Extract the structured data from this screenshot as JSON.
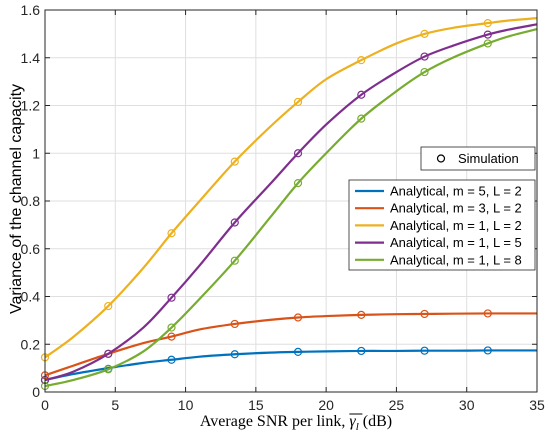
{
  "chart_data": {
    "type": "line",
    "xlabel": "Average SNR per link, ",
    "xlabel_symbol": "γ",
    "xlabel_subscript": "l",
    "xlabel_unit": " (dB)",
    "ylabel": "Variance of the channel capacity",
    "xlim": [
      0,
      35
    ],
    "ylim": [
      0,
      1.6
    ],
    "xticks": [
      0,
      5,
      10,
      15,
      20,
      25,
      30,
      35
    ],
    "yticks": [
      0,
      0.2,
      0.4,
      0.6,
      0.8,
      1,
      1.2,
      1.4,
      1.6
    ],
    "ytick_labels": [
      "0",
      "0.2",
      "0.4",
      "0.6",
      "0.8",
      "1",
      "1.2",
      "1.4",
      "1.6"
    ],
    "grid": true,
    "legend_simulation": {
      "label": "Simulation",
      "placement": "upper-right"
    },
    "legend_analytical": {
      "placement": "right"
    },
    "x_markers": [
      0,
      4.5,
      9,
      13.5,
      18,
      22.5,
      27,
      31.5
    ],
    "series": [
      {
        "name": "Analytical, m = 5, L = 2",
        "color": "#0072BD",
        "x": [
          0,
          2,
          4.5,
          7,
          9,
          11,
          13.5,
          16,
          18,
          20,
          22.5,
          25,
          27,
          29,
          31.5,
          33,
          35
        ],
        "y": [
          0.05,
          0.075,
          0.1,
          0.122,
          0.135,
          0.148,
          0.158,
          0.165,
          0.168,
          0.17,
          0.172,
          0.172,
          0.173,
          0.173,
          0.174,
          0.174,
          0.174
        ],
        "markers": [
          0.05,
          0.097,
          0.135,
          0.158,
          0.168,
          0.172,
          0.173,
          0.174
        ]
      },
      {
        "name": "Analytical, m = 3, L = 2",
        "color": "#D95319",
        "x": [
          0,
          2,
          4.5,
          7,
          9,
          11,
          13.5,
          16,
          18,
          20,
          22.5,
          25,
          27,
          29,
          31.5,
          33,
          35
        ],
        "y": [
          0.07,
          0.11,
          0.16,
          0.205,
          0.232,
          0.262,
          0.285,
          0.302,
          0.312,
          0.318,
          0.323,
          0.326,
          0.327,
          0.328,
          0.329,
          0.329,
          0.329
        ],
        "markers": [
          0.07,
          0.16,
          0.232,
          0.285,
          0.312,
          0.323,
          0.327,
          0.329
        ]
      },
      {
        "name": "Analytical, m = 1, L = 2",
        "color": "#EDB120",
        "x": [
          0,
          2,
          4.5,
          7,
          9,
          11,
          13.5,
          16,
          18,
          20,
          22.5,
          25,
          27,
          29,
          31.5,
          33,
          35
        ],
        "y": [
          0.145,
          0.23,
          0.36,
          0.52,
          0.665,
          0.8,
          0.965,
          1.11,
          1.215,
          1.31,
          1.39,
          1.46,
          1.5,
          1.525,
          1.545,
          1.556,
          1.566
        ],
        "markers": [
          0.145,
          0.36,
          0.665,
          0.965,
          1.215,
          1.39,
          1.5,
          1.545
        ]
      },
      {
        "name": "Analytical, m = 1, L = 5",
        "color": "#7E2F8E",
        "x": [
          0,
          2,
          4.5,
          7,
          9,
          11,
          13.5,
          16,
          18,
          20,
          22.5,
          25,
          27,
          29,
          31.5,
          33,
          35
        ],
        "y": [
          0.05,
          0.085,
          0.16,
          0.27,
          0.395,
          0.53,
          0.71,
          0.87,
          1.0,
          1.12,
          1.245,
          1.34,
          1.405,
          1.45,
          1.497,
          1.518,
          1.54
        ],
        "markers": [
          0.05,
          0.16,
          0.395,
          0.71,
          1.0,
          1.245,
          1.405,
          1.497
        ]
      },
      {
        "name": "Analytical, m = 1, L = 8",
        "color": "#77AC30",
        "x": [
          0,
          2,
          4.5,
          7,
          9,
          11,
          13.5,
          16,
          18,
          20,
          22.5,
          25,
          27,
          29,
          31.5,
          33,
          35
        ],
        "y": [
          0.025,
          0.05,
          0.095,
          0.17,
          0.27,
          0.39,
          0.55,
          0.73,
          0.875,
          1.0,
          1.145,
          1.26,
          1.34,
          1.4,
          1.46,
          1.49,
          1.52
        ],
        "markers": [
          0.025,
          0.095,
          0.27,
          0.55,
          0.875,
          1.145,
          1.34,
          1.46
        ]
      }
    ]
  }
}
